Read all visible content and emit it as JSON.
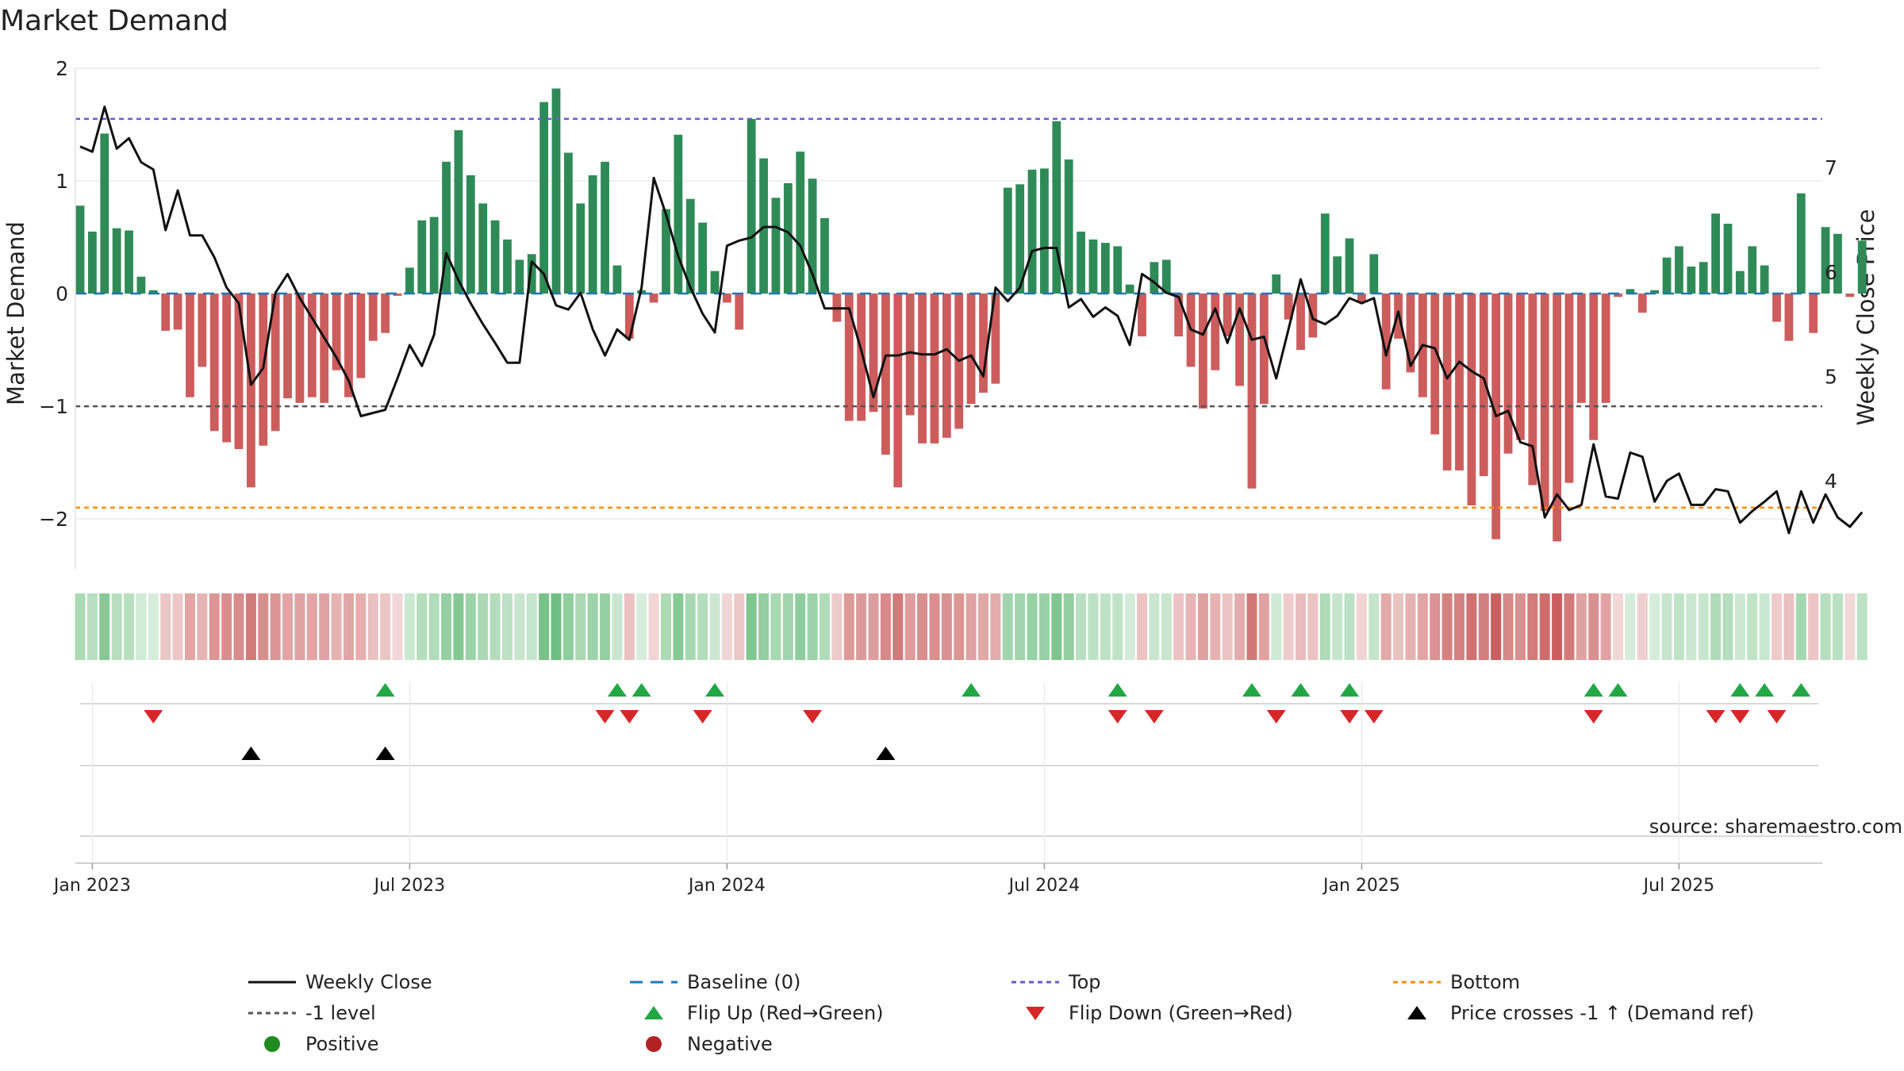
{
  "title": "Market Demand",
  "source": "source: sharemaestro.com",
  "colors": {
    "positive": "#2e8b57",
    "negative": "#cd5c5c",
    "close": "#111111",
    "baseline": "#1f77b4",
    "top": "#6a5acd",
    "bottom": "#ff8c00",
    "minus1": "#555555",
    "flip_up": "#22a745",
    "flip_down": "#d62728",
    "cross": "#000000"
  },
  "chart_data": {
    "type": "bar",
    "title": "Market Demand",
    "ylabel": "Market Demand",
    "y2label": "Weekly Close Price",
    "ylim": [
      -2.45,
      2.0
    ],
    "y2lim": [
      3.15,
      7.95
    ],
    "yticks": [
      {
        "v": 2,
        "label": "2"
      },
      {
        "v": 1,
        "label": "1"
      },
      {
        "v": 0,
        "label": "0"
      },
      {
        "v": -1,
        "label": "−1"
      },
      {
        "v": -2,
        "label": "−2"
      }
    ],
    "y2ticks": [
      {
        "v": 7,
        "label": "7"
      },
      {
        "v": 6,
        "label": "6"
      },
      {
        "v": 5,
        "label": "5"
      },
      {
        "v": 4,
        "label": "4"
      }
    ],
    "xtick_labels": [
      "Jan 2023",
      "Jul 2023",
      "Jan 2024",
      "Jul 2024",
      "Jan 2025",
      "Jul 2025"
    ],
    "xtick_weeks": [
      1,
      27,
      53,
      79,
      105,
      131
    ],
    "top_level": 1.55,
    "bottom_level": -1.9,
    "minus1_level": -1,
    "demand": [
      0.78,
      0.55,
      1.42,
      0.58,
      0.56,
      0.15,
      0.03,
      -0.33,
      -0.32,
      -0.92,
      -0.65,
      -1.22,
      -1.32,
      -1.38,
      -1.72,
      -1.35,
      -1.22,
      -0.93,
      -0.97,
      -0.92,
      -0.97,
      -0.68,
      -0.92,
      -0.75,
      -0.42,
      -0.35,
      -0.02,
      0.23,
      0.65,
      0.68,
      1.17,
      1.45,
      1.05,
      0.8,
      0.65,
      0.48,
      0.3,
      0.35,
      1.7,
      1.82,
      1.25,
      0.8,
      1.05,
      1.17,
      0.25,
      -0.4,
      0.03,
      -0.08,
      0.75,
      1.41,
      0.84,
      0.63,
      0.2,
      -0.08,
      -0.32,
      1.55,
      1.2,
      0.85,
      0.98,
      1.26,
      1.02,
      0.67,
      -0.25,
      -1.13,
      -1.13,
      -1.05,
      -1.43,
      -1.72,
      -1.08,
      -1.33,
      -1.33,
      -1.28,
      -1.2,
      -0.98,
      -0.88,
      -0.8,
      0.94,
      0.97,
      1.1,
      1.11,
      1.53,
      1.19,
      0.55,
      0.48,
      0.45,
      0.42,
      0.08,
      -0.38,
      0.28,
      0.3,
      -0.38,
      -0.65,
      -1.02,
      -0.68,
      -0.38,
      -0.82,
      -1.73,
      -0.98,
      0.17,
      -0.23,
      -0.5,
      -0.39,
      0.71,
      0.33,
      0.49,
      -0.08,
      0.35,
      -0.85,
      -0.4,
      -0.7,
      -0.92,
      -1.25,
      -1.57,
      -1.57,
      -1.88,
      -1.62,
      -2.18,
      -1.42,
      -1.3,
      -1.7,
      -1.93,
      -2.2,
      -1.68,
      -0.97,
      -1.3,
      -0.97,
      -0.03,
      0.04,
      -0.17,
      0.03,
      0.32,
      0.42,
      0.24,
      0.28,
      0.71,
      0.62,
      0.2,
      0.42,
      0.25,
      -0.25,
      -0.42,
      0.89,
      -0.35,
      0.59,
      0.53,
      -0.03,
      0.47
    ],
    "weekly_close": [
      7.2,
      7.15,
      7.58,
      7.18,
      7.28,
      7.05,
      6.98,
      6.4,
      6.78,
      6.35,
      6.35,
      6.14,
      5.85,
      5.7,
      4.92,
      5.08,
      5.8,
      5.98,
      5.75,
      5.56,
      5.37,
      5.18,
      4.96,
      4.62,
      4.65,
      4.68,
      4.98,
      5.3,
      5.1,
      5.4,
      6.18,
      5.92,
      5.7,
      5.5,
      5.32,
      5.13,
      5.13,
      6.1,
      5.98,
      5.68,
      5.64,
      5.8,
      5.45,
      5.2,
      5.45,
      5.35,
      5.85,
      6.9,
      6.55,
      6.15,
      5.85,
      5.6,
      5.42,
      6.25,
      6.3,
      6.33,
      6.43,
      6.43,
      6.38,
      6.25,
      5.98,
      5.65,
      5.65,
      5.65,
      5.25,
      4.8,
      5.2,
      5.2,
      5.23,
      5.21,
      5.21,
      5.26,
      5.15,
      5.2,
      5.0,
      5.85,
      5.72,
      5.85,
      6.2,
      6.23,
      6.23,
      5.66,
      5.74,
      5.57,
      5.66,
      5.58,
      5.3,
      5.98,
      5.9,
      5.8,
      5.76,
      5.45,
      5.4,
      5.65,
      5.32,
      5.65,
      5.35,
      5.38,
      4.98,
      5.45,
      5.93,
      5.55,
      5.5,
      5.58,
      5.75,
      5.7,
      5.75,
      5.2,
      5.62,
      5.1,
      5.3,
      5.27,
      4.98,
      5.14,
      5.05,
      4.98,
      4.62,
      4.67,
      4.37,
      4.33,
      3.65,
      3.87,
      3.72,
      3.77,
      4.35,
      3.85,
      3.83,
      4.27,
      4.23,
      3.8,
      4.0,
      4.07,
      3.77,
      3.77,
      3.92,
      3.9,
      3.6,
      3.71,
      3.8,
      3.9,
      3.5,
      3.9,
      3.6,
      3.87,
      3.65,
      3.56,
      3.7
    ],
    "heat_strip": "demand value per week as color intensity",
    "flip_up_weeks": [
      25,
      44,
      46,
      52,
      73,
      85,
      96,
      100,
      104,
      124,
      126,
      136,
      138,
      141
    ],
    "flip_down_weeks": [
      6,
      43,
      45,
      51,
      60,
      85,
      88,
      98,
      104,
      106,
      124,
      134,
      136,
      139
    ],
    "cross_weeks": [
      14,
      25,
      66
    ],
    "legend": [
      {
        "key": "close",
        "label": "Weekly Close"
      },
      {
        "key": "baseline",
        "label": "Baseline (0)"
      },
      {
        "key": "top",
        "label": "Top"
      },
      {
        "key": "bottom",
        "label": "Bottom"
      },
      {
        "key": "minus1",
        "label": "-1 level"
      },
      {
        "key": "flip_up",
        "label": "Flip Up (Red→Green)"
      },
      {
        "key": "flip_down",
        "label": "Flip Down (Green→Red)"
      },
      {
        "key": "cross",
        "label": "Price crosses -1 ↑ (Demand ref)"
      },
      {
        "key": "positive",
        "label": "Positive"
      },
      {
        "key": "negative",
        "label": "Negative"
      }
    ]
  }
}
